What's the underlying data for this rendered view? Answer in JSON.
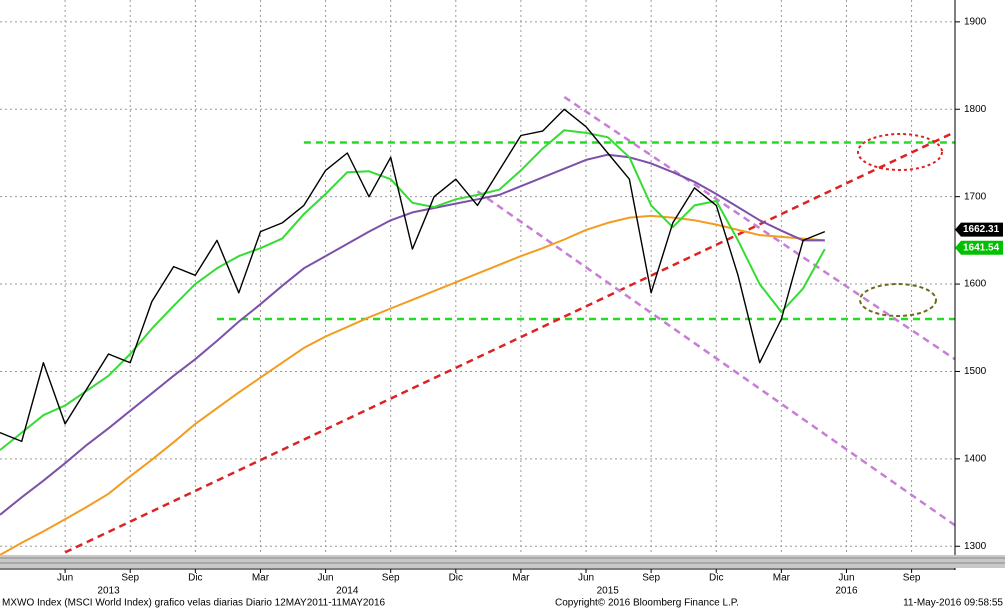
{
  "chart_data": {
    "type": "line",
    "x": [
      "2013-03",
      "2013-04",
      "2013-05",
      "2013-06",
      "2013-07",
      "2013-08",
      "2013-09",
      "2013-10",
      "2013-11",
      "2013-12",
      "2014-01",
      "2014-02",
      "2014-03",
      "2014-04",
      "2014-05",
      "2014-06",
      "2014-07",
      "2014-08",
      "2014-09",
      "2014-10",
      "2014-11",
      "2014-12",
      "2015-01",
      "2015-02",
      "2015-03",
      "2015-04",
      "2015-05",
      "2015-06",
      "2015-07",
      "2015-08",
      "2015-09",
      "2015-10",
      "2015-11",
      "2015-12",
      "2016-01",
      "2016-02",
      "2016-03",
      "2016-04",
      "2016-05"
    ],
    "series": [
      {
        "color": "#f39c1f",
        "values": [
          1290,
          1304,
          1317,
          1331,
          1345,
          1360,
          1380,
          1399,
          1419,
          1440,
          1458,
          1476,
          1493,
          1510,
          1527,
          1540,
          1551,
          1562,
          1572,
          1582,
          1592,
          1602,
          1612,
          1622,
          1632,
          1641,
          1651,
          1662,
          1670,
          1676,
          1678,
          1676,
          1673,
          1668,
          1662,
          1656,
          1654,
          1652,
          1650
        ]
      },
      {
        "color": "#7b52a8",
        "values": [
          1336,
          1356,
          1375,
          1395,
          1416,
          1435,
          1455,
          1475,
          1495,
          1514,
          1535,
          1557,
          1577,
          1598,
          1618,
          1632,
          1646,
          1660,
          1673,
          1682,
          1687,
          1692,
          1697,
          1702,
          1712,
          1722,
          1732,
          1742,
          1748,
          1745,
          1738,
          1728,
          1717,
          1703,
          1688,
          1673,
          1661,
          1650,
          1650
        ]
      },
      {
        "color": "#33dd33",
        "values": [
          1410,
          1430,
          1450,
          1461,
          1478,
          1495,
          1520,
          1549,
          1575,
          1600,
          1618,
          1632,
          1641,
          1652,
          1680,
          1703,
          1728,
          1729,
          1720,
          1693,
          1688,
          1697,
          1702,
          1708,
          1730,
          1755,
          1776,
          1773,
          1768,
          1745,
          1690,
          1665,
          1690,
          1695,
          1650,
          1600,
          1568,
          1595,
          1640
        ]
      },
      {
        "color": "#000000",
        "values": [
          1430,
          1420,
          1510,
          1440,
          1480,
          1520,
          1510,
          1580,
          1620,
          1610,
          1650,
          1590,
          1660,
          1670,
          1690,
          1730,
          1750,
          1700,
          1745,
          1640,
          1700,
          1720,
          1690,
          1730,
          1770,
          1775,
          1800,
          1780,
          1750,
          1720,
          1590,
          1670,
          1710,
          1690,
          1610,
          1510,
          1560,
          1650,
          1660
        ]
      }
    ],
    "trend_lines": [
      {
        "color": "#22dd22",
        "x_from": "2014-05",
        "y_from": 1762,
        "x_to": "2016-11",
        "y_to": 1762
      },
      {
        "color": "#22dd22",
        "x_from": "2014-01",
        "y_from": 1560,
        "x_to": "2016-11",
        "y_to": 1560
      },
      {
        "color": "#dd2222",
        "x_from": "2013-06",
        "y_from": 1293,
        "x_to": "2016-11",
        "y_to": 1774
      },
      {
        "color": "#c77fd6",
        "x_from": "2015-05",
        "y_from": 1814,
        "x_to": "2016-11",
        "y_to": 1514
      },
      {
        "color": "#c77fd6",
        "x_from": "2015-01",
        "y_from": 1706,
        "x_to": "2016-11",
        "y_to": 1324
      }
    ],
    "last_values": [
      {
        "value": 1662.31,
        "color": "#000000"
      },
      {
        "value": 1641.54,
        "color": "#00c000"
      }
    ],
    "xlim": [
      "2013-03",
      "2016-11"
    ],
    "xticks": [
      {
        "value": "2013-06",
        "label": "Jun"
      },
      {
        "value": "2013-09",
        "label": "Sep"
      },
      {
        "value": "2013-12",
        "label": "Dic"
      },
      {
        "value": "2014-03",
        "label": "Mar"
      },
      {
        "value": "2014-06",
        "label": "Jun"
      },
      {
        "value": "2014-09",
        "label": "Sep"
      },
      {
        "value": "2014-12",
        "label": "Dic"
      },
      {
        "value": "2015-03",
        "label": "Mar"
      },
      {
        "value": "2015-06",
        "label": "Jun"
      },
      {
        "value": "2015-09",
        "label": "Sep"
      },
      {
        "value": "2015-12",
        "label": "Dic"
      },
      {
        "value": "2016-03",
        "label": "Mar"
      },
      {
        "value": "2016-06",
        "label": "Jun"
      },
      {
        "value": "2016-09",
        "label": "Sep"
      }
    ],
    "year_labels": [
      {
        "value": "2013-08",
        "label": "2013"
      },
      {
        "value": "2014-07",
        "label": "2014"
      },
      {
        "value": "2015-07",
        "label": "2015"
      },
      {
        "value": "2016-06",
        "label": "2016"
      }
    ],
    "ylim": [
      1290,
      1925
    ],
    "yticks": [
      1300,
      1400,
      1500,
      1600,
      1700,
      1800,
      1900
    ],
    "grid": true,
    "source_text": "MXWO Index (MSCI World Index) grafico velas diarias  Diario 12MAY2011-11MAY2016",
    "copyright": "Copyright© 2016 Bloomberg Finance L.P.",
    "timestamp": "11-May-2016 09:58:55"
  }
}
